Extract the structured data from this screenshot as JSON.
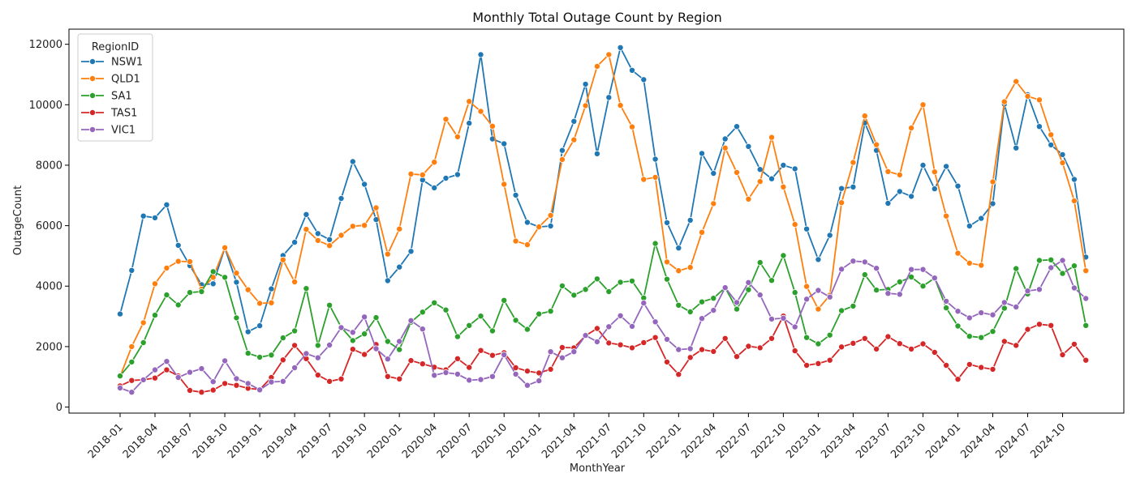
{
  "chart_data": {
    "type": "line",
    "title": "Monthly Total Outage Count by Region",
    "xlabel": "MonthYear",
    "ylabel": "OutageCount",
    "ylim": [
      -200,
      12500
    ],
    "yticks": [
      0,
      2000,
      4000,
      6000,
      8000,
      10000,
      12000
    ],
    "grid": false,
    "legend": {
      "title": "RegionID",
      "position": "top-left"
    },
    "x_start": "2018-01",
    "x_ticks": [
      "2018-01",
      "2018-04",
      "2018-07",
      "2018-10",
      "2019-01",
      "2019-04",
      "2019-07",
      "2019-10",
      "2020-01",
      "2020-04",
      "2020-07",
      "2020-10",
      "2021-01",
      "2021-04",
      "2021-07",
      "2021-10",
      "2022-01",
      "2022-04",
      "2022-07",
      "2022-10",
      "2023-01",
      "2023-04",
      "2023-07",
      "2023-10",
      "2024-01",
      "2024-04",
      "2024-07",
      "2024-10"
    ],
    "series": [
      {
        "name": "NSW1",
        "color": "#1f77b4",
        "values": [
          3080,
          4520,
          6320,
          6260,
          6690,
          5350,
          4680,
          4050,
          4080,
          5260,
          4130,
          2490,
          2690,
          3910,
          5010,
          5450,
          6370,
          5740,
          5540,
          6900,
          8120,
          7370,
          6200,
          4180,
          4630,
          5150,
          7510,
          7250,
          7570,
          7690,
          9390,
          11660,
          8870,
          8710,
          7010,
          6110,
          5960,
          5990,
          8490,
          9450,
          10680,
          8380,
          10240,
          11890,
          11140,
          10830,
          8200,
          6100,
          5260,
          6180,
          8390,
          7730,
          8870,
          9280,
          8620,
          7860,
          7550,
          8000,
          7880,
          5890,
          4880,
          5680,
          7230,
          7280,
          9400,
          8490,
          6740,
          7130,
          6970,
          8000,
          7220,
          7960,
          7310,
          5990,
          6240,
          6730,
          10020,
          8570,
          10330,
          9280,
          8670,
          8350,
          7530,
          4960
        ]
      },
      {
        "name": "QLD1",
        "color": "#ff7f0e",
        "values": [
          1010,
          2000,
          2790,
          4080,
          4600,
          4820,
          4810,
          3900,
          4290,
          5270,
          4430,
          3880,
          3430,
          3450,
          4870,
          4140,
          5880,
          5510,
          5340,
          5680,
          5980,
          6010,
          6590,
          5060,
          5890,
          7710,
          7680,
          8100,
          9520,
          8940,
          10110,
          9780,
          9290,
          7370,
          5490,
          5370,
          5960,
          6340,
          8190,
          8840,
          9970,
          11270,
          11660,
          9980,
          9270,
          7530,
          7600,
          4800,
          4510,
          4620,
          5780,
          6730,
          8570,
          7760,
          6880,
          7460,
          8920,
          7280,
          6040,
          3990,
          3240,
          3700,
          6760,
          8090,
          9630,
          8680,
          7790,
          7680,
          9230,
          10000,
          7780,
          6320,
          5090,
          4760,
          4690,
          7450,
          10100,
          10770,
          10280,
          10160,
          9010,
          8080,
          6820,
          4510
        ]
      },
      {
        "name": "SA1",
        "color": "#2ca02c",
        "values": [
          1030,
          1490,
          2130,
          3040,
          3710,
          3380,
          3790,
          3820,
          4480,
          4290,
          2950,
          1780,
          1650,
          1720,
          2290,
          2520,
          3920,
          2040,
          3370,
          2640,
          2200,
          2420,
          2960,
          2170,
          1900,
          2810,
          3140,
          3450,
          3210,
          2330,
          2700,
          3010,
          2520,
          3530,
          2870,
          2570,
          3080,
          3170,
          4010,
          3700,
          3890,
          4240,
          3820,
          4130,
          4170,
          3610,
          5410,
          4230,
          3370,
          3150,
          3480,
          3600,
          3950,
          3240,
          3880,
          4780,
          4190,
          5010,
          3790,
          2300,
          2090,
          2380,
          3190,
          3340,
          4380,
          3870,
          3890,
          4140,
          4300,
          4000,
          4270,
          3280,
          2680,
          2340,
          2300,
          2500,
          3270,
          4580,
          3740,
          4850,
          4870,
          4420,
          4670,
          2700
        ]
      },
      {
        "name": "TAS1",
        "color": "#d62728",
        "values": [
          700,
          880,
          900,
          960,
          1230,
          1030,
          550,
          490,
          560,
          780,
          720,
          620,
          580,
          980,
          1560,
          2040,
          1600,
          1060,
          850,
          930,
          1910,
          1740,
          2070,
          1010,
          930,
          1540,
          1430,
          1320,
          1230,
          1600,
          1310,
          1870,
          1710,
          1800,
          1300,
          1190,
          1130,
          1250,
          1970,
          1960,
          2360,
          2600,
          2120,
          2060,
          1960,
          2130,
          2300,
          1490,
          1080,
          1640,
          1900,
          1840,
          2270,
          1670,
          2010,
          1960,
          2270,
          3010,
          1860,
          1380,
          1440,
          1550,
          1990,
          2110,
          2270,
          1920,
          2330,
          2100,
          1920,
          2090,
          1810,
          1380,
          920,
          1410,
          1310,
          1250,
          2170,
          2040,
          2570,
          2740,
          2700,
          1730,
          2080,
          1550
        ]
      },
      {
        "name": "VIC1",
        "color": "#9467bd",
        "values": [
          630,
          490,
          900,
          1230,
          1510,
          980,
          1150,
          1270,
          840,
          1530,
          940,
          780,
          570,
          830,
          850,
          1300,
          1770,
          1630,
          2050,
          2630,
          2470,
          2980,
          1930,
          1590,
          2170,
          2860,
          2580,
          1050,
          1140,
          1090,
          890,
          910,
          1010,
          1730,
          1090,
          720,
          870,
          1830,
          1630,
          1830,
          2370,
          2160,
          2660,
          3020,
          2670,
          3440,
          2820,
          2240,
          1900,
          1930,
          2930,
          3200,
          3950,
          3460,
          4120,
          3710,
          2910,
          2940,
          2650,
          3570,
          3860,
          3640,
          4560,
          4830,
          4800,
          4590,
          3760,
          3730,
          4550,
          4550,
          4270,
          3500,
          3170,
          2950,
          3120,
          3050,
          3460,
          3310,
          3840,
          3890,
          4610,
          4850,
          3940,
          3590
        ]
      }
    ]
  }
}
